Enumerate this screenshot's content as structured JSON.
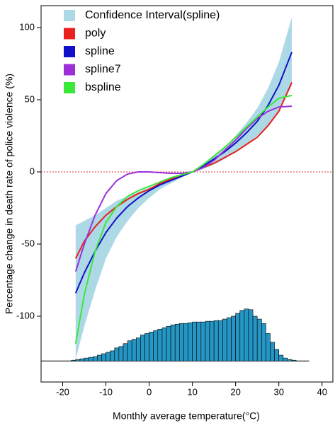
{
  "chart_data": {
    "type": "line",
    "xlabel": "Monthly average temperature(°C)",
    "ylabel": "Percentage change in death rate of police violence (%)",
    "xlim": [
      -25,
      42.5
    ],
    "ylim": [
      -145.6,
      115.2
    ],
    "xticks": [
      -20,
      -10,
      0,
      10,
      20,
      30,
      40
    ],
    "yticks": [
      -100,
      -50,
      0,
      50,
      100
    ],
    "hline": 0,
    "hline_color": "#e03030",
    "x": [
      -17,
      -15,
      -12.5,
      -10,
      -7.5,
      -5,
      -2.5,
      0,
      2.5,
      5,
      7.5,
      10,
      12.5,
      15,
      17.5,
      20,
      22.5,
      25,
      27.5,
      30,
      33
    ],
    "band": {
      "name": "Confidence Interval(spline)",
      "color": "#add8e6",
      "lower": [
        -130,
        -107,
        -82,
        -60,
        -45,
        -34,
        -25,
        -18,
        -12,
        -8,
        -4,
        -0.5,
        2,
        5,
        9,
        14,
        19,
        25,
        32,
        42,
        60
      ],
      "upper": [
        -37,
        -34,
        -30,
        -25,
        -20,
        -17,
        -14,
        -11,
        -8,
        -4,
        -1.5,
        0.5,
        5,
        11,
        17,
        25,
        34,
        44,
        58,
        76,
        107
      ]
    },
    "series": [
      {
        "name": "poly",
        "color": "#e8201e",
        "values": [
          -60,
          -48,
          -38,
          -30,
          -24,
          -19,
          -15,
          -12,
          -8,
          -5,
          -2,
          0,
          3,
          6,
          10,
          14,
          19,
          24,
          32,
          42,
          62
        ]
      },
      {
        "name": "spline",
        "color": "#1010c8",
        "values": [
          -84,
          -70,
          -55,
          -42,
          -32,
          -24,
          -18,
          -13,
          -9,
          -6,
          -3,
          0,
          4,
          9,
          14,
          20,
          27,
          35,
          46,
          60,
          83
        ]
      },
      {
        "name": "spline7",
        "color": "#9b30d8",
        "values": [
          -69,
          -50,
          -30,
          -15,
          -6,
          -1.5,
          0,
          0,
          -0.5,
          -1,
          -1,
          0,
          3,
          8,
          15,
          22,
          30,
          37,
          42,
          45,
          45.5
        ]
      },
      {
        "name": "bspline",
        "color": "#3ae83a",
        "values": [
          -119,
          -85,
          -55,
          -35,
          -24,
          -17,
          -13,
          -10,
          -7,
          -4,
          -2,
          0,
          5,
          11,
          17,
          24,
          31,
          38,
          45,
          51,
          53
        ]
      }
    ],
    "histogram": {
      "color": "#2596c4",
      "base": -131,
      "bins": [
        -18,
        -17,
        -16,
        -15,
        -14,
        -13,
        -12,
        -11,
        -10,
        -9,
        -8,
        -7,
        -6,
        -5,
        -4,
        -3,
        -2,
        -1,
        0,
        1,
        2,
        3,
        4,
        5,
        6,
        7,
        8,
        9,
        10,
        11,
        12,
        13,
        14,
        15,
        16,
        17,
        18,
        19,
        20,
        21,
        22,
        23,
        24,
        25,
        26,
        27,
        28,
        29,
        30,
        31,
        32,
        33,
        34
      ],
      "tops": [
        -130.5,
        -130,
        -129.5,
        -129,
        -128.5,
        -128,
        -127,
        -126,
        -125,
        -124,
        -122,
        -121,
        -119,
        -117,
        -116,
        -115,
        -113,
        -112,
        -111,
        -110,
        -109,
        -108,
        -107,
        -106,
        -105.5,
        -105,
        -105,
        -104.5,
        -104,
        -104,
        -104,
        -103.5,
        -103.5,
        -103,
        -103,
        -102,
        -101,
        -100,
        -98,
        -96,
        -95,
        -95.5,
        -100,
        -102,
        -105,
        -112,
        -118,
        -123,
        -127,
        -129,
        -130,
        -130.5
      ]
    },
    "legend": "top-left"
  }
}
